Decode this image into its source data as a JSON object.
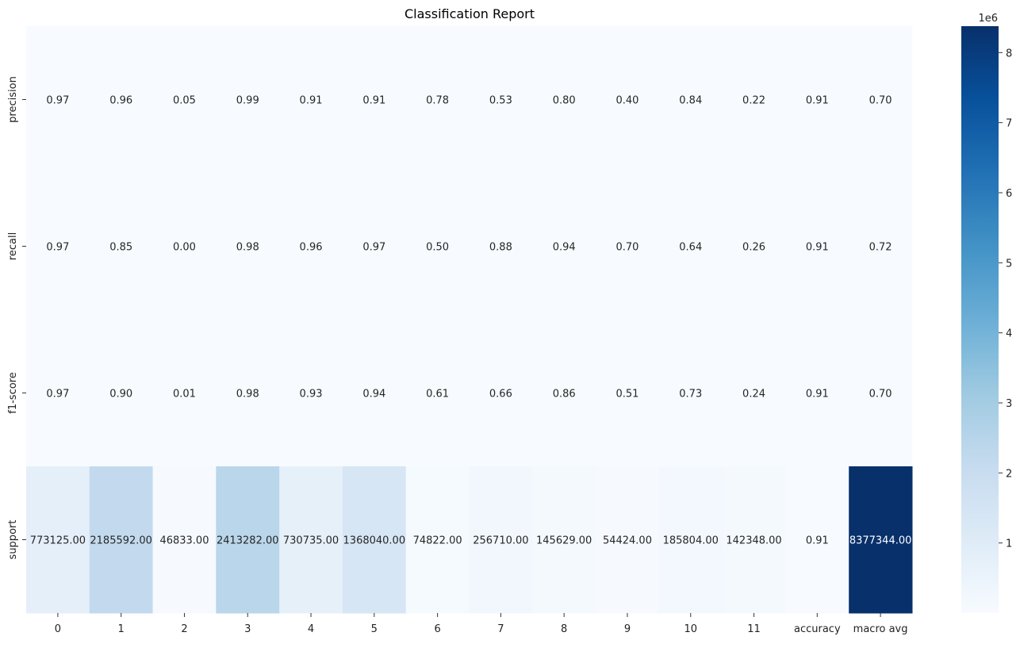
{
  "chart_data": {
    "type": "heatmap",
    "title": "Classification Report",
    "rows": [
      "precision",
      "recall",
      "f1-score",
      "support"
    ],
    "columns": [
      "0",
      "1",
      "2",
      "3",
      "4",
      "5",
      "6",
      "7",
      "8",
      "9",
      "10",
      "11",
      "accuracy",
      "macro avg"
    ],
    "values": [
      [
        0.97,
        0.96,
        0.05,
        0.99,
        0.91,
        0.91,
        0.78,
        0.53,
        0.8,
        0.4,
        0.84,
        0.22,
        0.91,
        0.7
      ],
      [
        0.97,
        0.85,
        0.0,
        0.98,
        0.96,
        0.97,
        0.5,
        0.88,
        0.94,
        0.7,
        0.64,
        0.26,
        0.91,
        0.72
      ],
      [
        0.97,
        0.9,
        0.01,
        0.98,
        0.93,
        0.94,
        0.61,
        0.66,
        0.86,
        0.51,
        0.73,
        0.24,
        0.91,
        0.7
      ],
      [
        773125.0,
        2185592.0,
        46833.0,
        2413282.0,
        730735.0,
        1368040.0,
        74822.0,
        256710.0,
        145629.0,
        54424.0,
        185804.0,
        142348.0,
        0.91,
        8377344.0
      ]
    ],
    "value_format": "%.2f",
    "colormap": "Blues",
    "color_range": [
      0,
      8377344
    ],
    "colorbar": {
      "ticks": [
        1,
        2,
        3,
        4,
        5,
        6,
        7,
        8
      ],
      "scale_label": "1e6"
    }
  }
}
